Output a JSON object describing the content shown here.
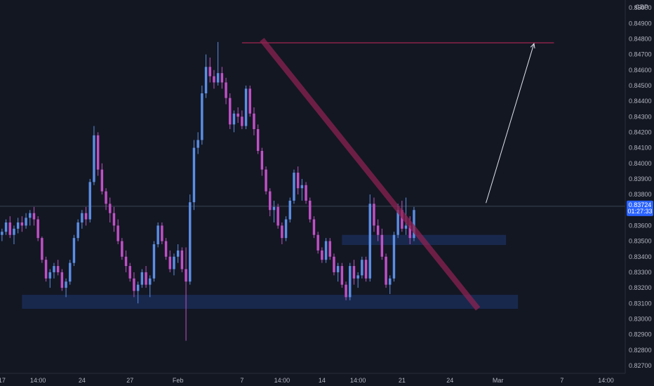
{
  "chart_data": {
    "type": "candlestick",
    "title": "",
    "currency": "GBP",
    "ylim": [
      0.8265,
      0.8505
    ],
    "y_ticks": [
      "0.85000",
      "0.84900",
      "0.84800",
      "0.84700",
      "0.84600",
      "0.84500",
      "0.84400",
      "0.84300",
      "0.84200",
      "0.84100",
      "0.84000",
      "0.83900",
      "0.83800",
      "0.83700",
      "0.83600",
      "0.83500",
      "0.83400",
      "0.83300",
      "0.83200",
      "0.83100",
      "0.83000",
      "0.82900",
      "0.82800",
      "0.82700"
    ],
    "x_ticks": [
      {
        "label": "17",
        "i": 0
      },
      {
        "label": "14:00",
        "i": 9
      },
      {
        "label": "24",
        "i": 20
      },
      {
        "label": "27",
        "i": 32
      },
      {
        "label": "Feb",
        "i": 44
      },
      {
        "label": "7",
        "i": 60
      },
      {
        "label": "14:00",
        "i": 70
      },
      {
        "label": "14",
        "i": 80
      },
      {
        "label": "14:00",
        "i": 89
      },
      {
        "label": "21",
        "i": 100
      },
      {
        "label": "24",
        "i": 112
      },
      {
        "label": "Mar",
        "i": 124
      },
      {
        "label": "7",
        "i": 140
      },
      {
        "label": "14:00",
        "i": 151
      }
    ],
    "last_price": "0.83724",
    "countdown": "01:27:33",
    "colors": {
      "up": "#5b8ee6",
      "down": "#c250c8",
      "price_line": "#3a4555",
      "trend": "#8c2152",
      "resistance": "#8a2447",
      "zone": "#1a2b55",
      "arrow": "#e0e3eb"
    },
    "resistance_price": 0.84775,
    "zones": [
      {
        "from_i": 5,
        "to_i": 129,
        "low": 0.83065,
        "high": 0.83155
      },
      {
        "from_i": 85,
        "to_i": 126,
        "low": 0.83475,
        "high": 0.8354
      }
    ],
    "trend_line": {
      "from_i": 65,
      "from_price": 0.84795,
      "to_i": 119,
      "to_price": 0.83065
    },
    "projection": {
      "from_i": 121,
      "from_price": 0.83745,
      "to_i": 133,
      "to_price": 0.8477
    },
    "candles": [
      [
        0.8354,
        0.8358,
        0.835,
        0.8356
      ],
      [
        0.8356,
        0.8364,
        0.8354,
        0.8362
      ],
      [
        0.8362,
        0.8366,
        0.8352,
        0.8354
      ],
      [
        0.8354,
        0.836,
        0.8348,
        0.8358
      ],
      [
        0.8358,
        0.8365,
        0.8355,
        0.8362
      ],
      [
        0.8362,
        0.8366,
        0.8356,
        0.836
      ],
      [
        0.836,
        0.8368,
        0.8358,
        0.8365
      ],
      [
        0.8365,
        0.837,
        0.836,
        0.8368
      ],
      [
        0.8368,
        0.8372,
        0.836,
        0.8364
      ],
      [
        0.8364,
        0.8366,
        0.835,
        0.8352
      ],
      [
        0.8352,
        0.8353,
        0.8336,
        0.8338
      ],
      [
        0.8338,
        0.834,
        0.8324,
        0.8326
      ],
      [
        0.8326,
        0.8332,
        0.832,
        0.833
      ],
      [
        0.833,
        0.8336,
        0.8326,
        0.8334
      ],
      [
        0.8334,
        0.8338,
        0.8328,
        0.833
      ],
      [
        0.833,
        0.8332,
        0.8318,
        0.832
      ],
      [
        0.832,
        0.8326,
        0.8314,
        0.8324
      ],
      [
        0.8324,
        0.8338,
        0.8322,
        0.8336
      ],
      [
        0.8336,
        0.8354,
        0.8334,
        0.8352
      ],
      [
        0.8352,
        0.8364,
        0.835,
        0.8362
      ],
      [
        0.8362,
        0.837,
        0.8358,
        0.8368
      ],
      [
        0.8368,
        0.8372,
        0.836,
        0.8364
      ],
      [
        0.8364,
        0.839,
        0.8362,
        0.8388
      ],
      [
        0.8388,
        0.8424,
        0.8386,
        0.8418
      ],
      [
        0.8418,
        0.842,
        0.8392,
        0.8396
      ],
      [
        0.8396,
        0.84,
        0.838,
        0.8382
      ],
      [
        0.8382,
        0.8384,
        0.837,
        0.8374
      ],
      [
        0.8374,
        0.8378,
        0.8362,
        0.8368
      ],
      [
        0.8368,
        0.8372,
        0.8356,
        0.836
      ],
      [
        0.836,
        0.8364,
        0.8348,
        0.835
      ],
      [
        0.835,
        0.8352,
        0.8338,
        0.834
      ],
      [
        0.834,
        0.8344,
        0.833,
        0.8334
      ],
      [
        0.8334,
        0.8336,
        0.8324,
        0.8326
      ],
      [
        0.8326,
        0.833,
        0.8314,
        0.8318
      ],
      [
        0.8318,
        0.8324,
        0.831,
        0.8322
      ],
      [
        0.8322,
        0.8332,
        0.832,
        0.833
      ],
      [
        0.833,
        0.8334,
        0.832,
        0.8322
      ],
      [
        0.8322,
        0.8328,
        0.8314,
        0.8326
      ],
      [
        0.8326,
        0.835,
        0.8324,
        0.8348
      ],
      [
        0.8348,
        0.8362,
        0.8346,
        0.836
      ],
      [
        0.836,
        0.8362,
        0.8348,
        0.835
      ],
      [
        0.835,
        0.8352,
        0.8338,
        0.834
      ],
      [
        0.834,
        0.8344,
        0.833,
        0.8332
      ],
      [
        0.8332,
        0.8342,
        0.8328,
        0.834
      ],
      [
        0.834,
        0.8348,
        0.8336,
        0.8344
      ],
      [
        0.8344,
        0.8346,
        0.833,
        0.8332
      ],
      [
        0.8332,
        0.8346,
        0.8286,
        0.8324
      ],
      [
        0.8324,
        0.838,
        0.8322,
        0.8375
      ],
      [
        0.8375,
        0.8415,
        0.837,
        0.841
      ],
      [
        0.841,
        0.842,
        0.8406,
        0.8415
      ],
      [
        0.8415,
        0.845,
        0.8412,
        0.8445
      ],
      [
        0.8445,
        0.847,
        0.8442,
        0.8462
      ],
      [
        0.8462,
        0.8468,
        0.8452,
        0.8456
      ],
      [
        0.8456,
        0.846,
        0.8448,
        0.8452
      ],
      [
        0.8452,
        0.8478,
        0.845,
        0.8458
      ],
      [
        0.8458,
        0.8462,
        0.8448,
        0.8452
      ],
      [
        0.8452,
        0.8455,
        0.8438,
        0.8442
      ],
      [
        0.8442,
        0.8445,
        0.8422,
        0.8425
      ],
      [
        0.8425,
        0.8434,
        0.842,
        0.8432
      ],
      [
        0.8432,
        0.8436,
        0.8426,
        0.843
      ],
      [
        0.843,
        0.8434,
        0.8422,
        0.8424
      ],
      [
        0.8424,
        0.845,
        0.8422,
        0.8448
      ],
      [
        0.8448,
        0.845,
        0.843,
        0.8432
      ],
      [
        0.8432,
        0.8436,
        0.8418,
        0.8422
      ],
      [
        0.8422,
        0.8425,
        0.8406,
        0.8408
      ],
      [
        0.8408,
        0.841,
        0.8392,
        0.8396
      ],
      [
        0.8396,
        0.8398,
        0.838,
        0.8382
      ],
      [
        0.8382,
        0.8384,
        0.8366,
        0.837
      ],
      [
        0.837,
        0.8376,
        0.8362,
        0.8372
      ],
      [
        0.8372,
        0.8374,
        0.8358,
        0.836
      ],
      [
        0.836,
        0.8362,
        0.8348,
        0.8352
      ],
      [
        0.8352,
        0.8366,
        0.835,
        0.8364
      ],
      [
        0.8364,
        0.8378,
        0.8362,
        0.8376
      ],
      [
        0.8376,
        0.8396,
        0.8374,
        0.8394
      ],
      [
        0.8394,
        0.8398,
        0.838,
        0.8384
      ],
      [
        0.8384,
        0.839,
        0.8376,
        0.8386
      ],
      [
        0.8386,
        0.8388,
        0.8374,
        0.8376
      ],
      [
        0.8376,
        0.8378,
        0.8362,
        0.8364
      ],
      [
        0.8364,
        0.8366,
        0.8352,
        0.8354
      ],
      [
        0.8354,
        0.8356,
        0.8342,
        0.8344
      ],
      [
        0.8344,
        0.8346,
        0.8336,
        0.8338
      ],
      [
        0.8338,
        0.8352,
        0.8336,
        0.835
      ],
      [
        0.835,
        0.8352,
        0.8338,
        0.834
      ],
      [
        0.834,
        0.8342,
        0.8328,
        0.833
      ],
      [
        0.833,
        0.8336,
        0.8324,
        0.8334
      ],
      [
        0.8334,
        0.8336,
        0.832,
        0.8322
      ],
      [
        0.8322,
        0.8324,
        0.8312,
        0.8314
      ],
      [
        0.8314,
        0.8336,
        0.8312,
        0.8334
      ],
      [
        0.8334,
        0.8338,
        0.8322,
        0.8326
      ],
      [
        0.8326,
        0.833,
        0.832,
        0.8328
      ],
      [
        0.8328,
        0.834,
        0.8326,
        0.8338
      ],
      [
        0.8338,
        0.834,
        0.8324,
        0.8326
      ],
      [
        0.8326,
        0.838,
        0.8324,
        0.8374
      ],
      [
        0.8374,
        0.8378,
        0.8356,
        0.836
      ],
      [
        0.836,
        0.8364,
        0.835,
        0.8354
      ],
      [
        0.8354,
        0.8358,
        0.8338,
        0.834
      ],
      [
        0.834,
        0.8342,
        0.832,
        0.8322
      ],
      [
        0.8322,
        0.8328,
        0.8316,
        0.8326
      ],
      [
        0.8326,
        0.8356,
        0.8324,
        0.8354
      ],
      [
        0.8354,
        0.8374,
        0.8352,
        0.837
      ],
      [
        0.837,
        0.8376,
        0.8356,
        0.8358
      ],
      [
        0.8358,
        0.8378,
        0.8354,
        0.836
      ],
      [
        0.836,
        0.8366,
        0.8348,
        0.8352
      ],
      [
        0.8352,
        0.8372,
        0.835,
        0.837
      ]
    ]
  }
}
